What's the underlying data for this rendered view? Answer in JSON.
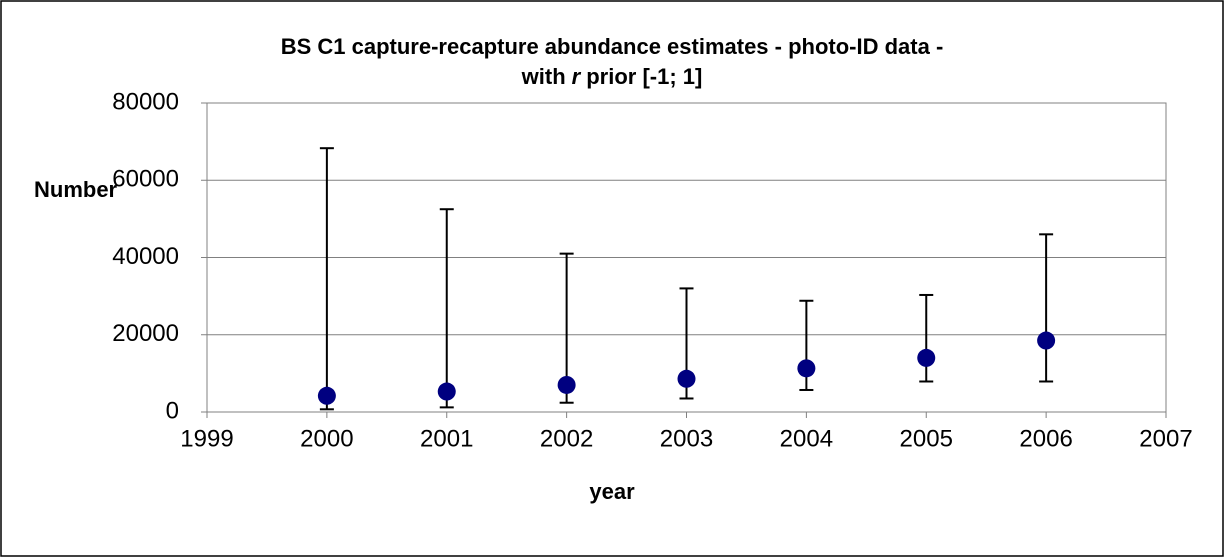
{
  "chart_data": {
    "type": "scatter",
    "title": [
      "BS C1 capture-recapture abundance estimates - photo-ID data -",
      [
        "with",
        "r",
        "prior [-1; 1]"
      ]
    ],
    "x_label": "year",
    "y_label": "Number",
    "x": [
      2000,
      2001,
      2002,
      2003,
      2004,
      2005,
      2006
    ],
    "series": [
      {
        "color": "#000080",
        "values": [
          4200,
          5300,
          7000,
          8600,
          11300,
          14000,
          18500
        ],
        "lower": [
          700,
          1200,
          2400,
          3500,
          5700,
          7900,
          7900
        ],
        "upper": [
          68300,
          52500,
          41000,
          32000,
          28800,
          30300,
          46000
        ]
      }
    ],
    "xlim": [
      1999,
      2007
    ],
    "xticks": [
      1999,
      2000,
      2001,
      2002,
      2003,
      2004,
      2005,
      2006,
      2007
    ],
    "ylim": [
      0,
      80000
    ],
    "yticks": [
      0,
      20000,
      40000,
      60000,
      80000
    ],
    "grid": true
  }
}
